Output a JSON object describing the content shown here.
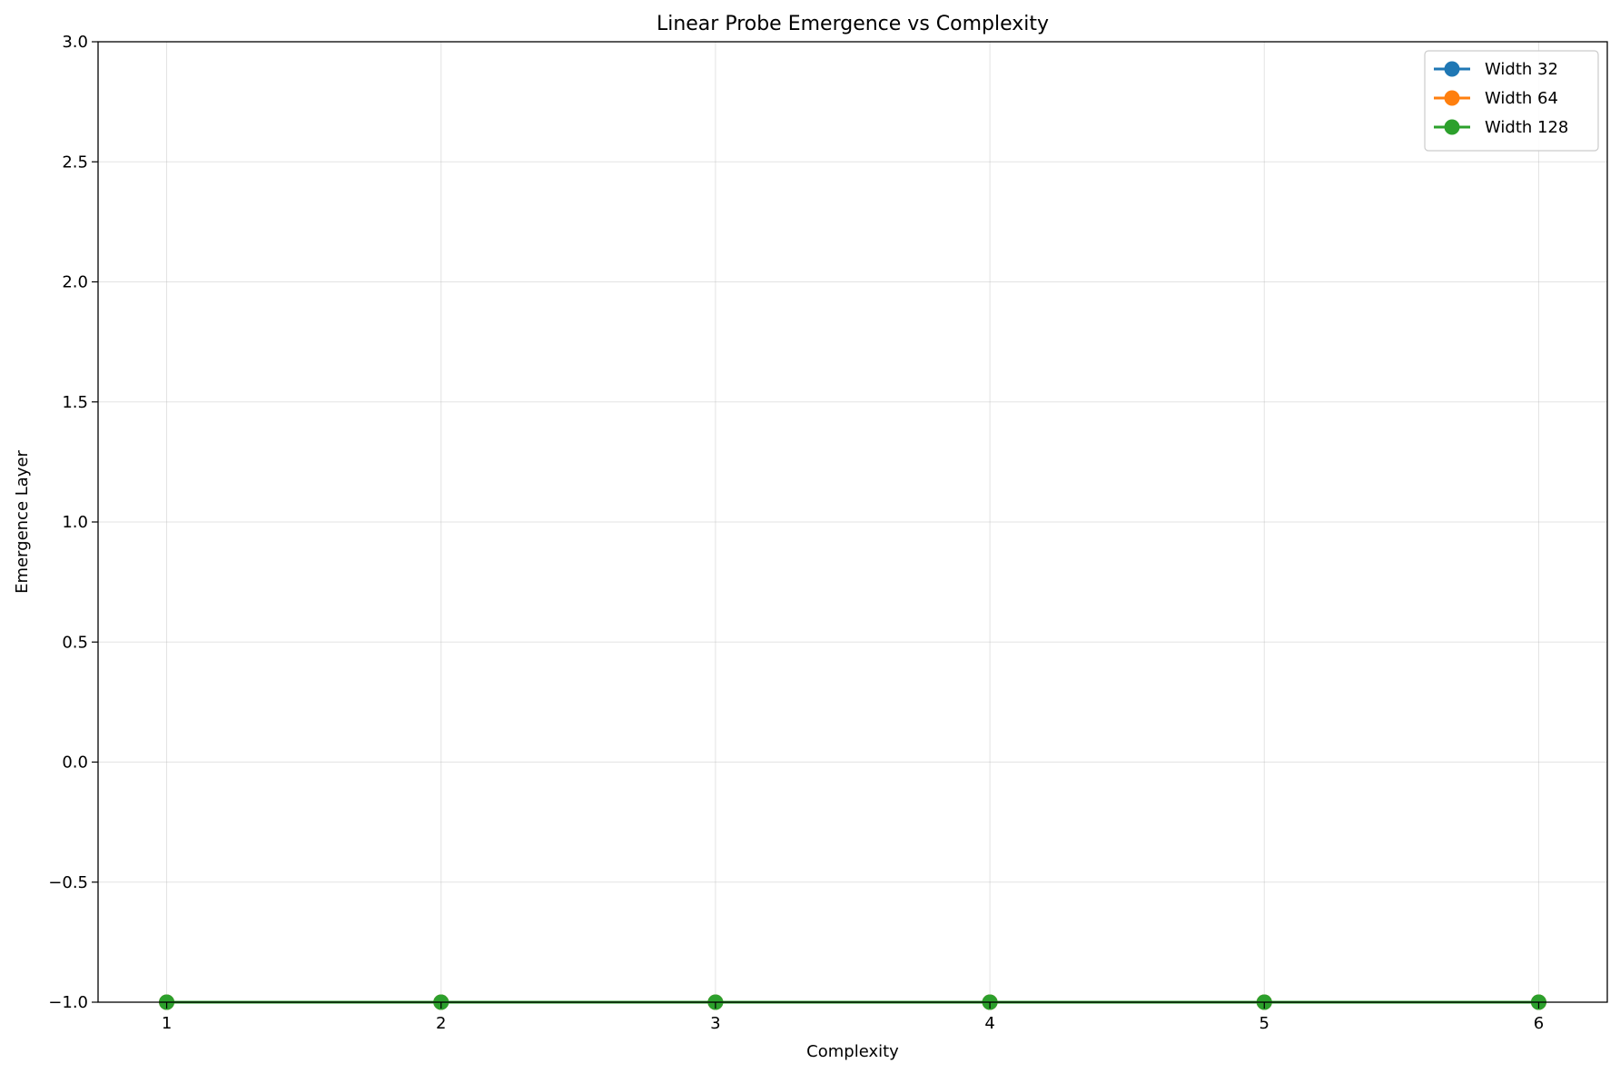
{
  "chart_data": {
    "type": "line",
    "title": "Linear Probe Emergence vs Complexity",
    "xlabel": "Complexity",
    "ylabel": "Emergence Layer",
    "x": [
      1,
      2,
      3,
      4,
      5,
      6
    ],
    "xticks": [
      "1",
      "2",
      "3",
      "4",
      "5",
      "6"
    ],
    "yticks": [
      "−1.0",
      "−0.5",
      "0.0",
      "0.5",
      "1.0",
      "1.5",
      "2.0",
      "2.5",
      "3.0"
    ],
    "ytick_values": [
      -1.0,
      -0.5,
      0.0,
      0.5,
      1.0,
      1.5,
      2.0,
      2.5,
      3.0
    ],
    "xlim": [
      0.75,
      6.25
    ],
    "ylim": [
      -1.0,
      3.0
    ],
    "grid": true,
    "legend_position": "top-right",
    "series": [
      {
        "name": "Width 32",
        "color": "#1f77b4",
        "values": [
          -1,
          -1,
          -1,
          -1,
          -1,
          -1
        ]
      },
      {
        "name": "Width 64",
        "color": "#ff7f0e",
        "values": [
          -1,
          -1,
          -1,
          -1,
          -1,
          -1
        ]
      },
      {
        "name": "Width 128",
        "color": "#2ca02c",
        "values": [
          -1,
          -1,
          -1,
          -1,
          -1,
          -1
        ]
      }
    ]
  }
}
